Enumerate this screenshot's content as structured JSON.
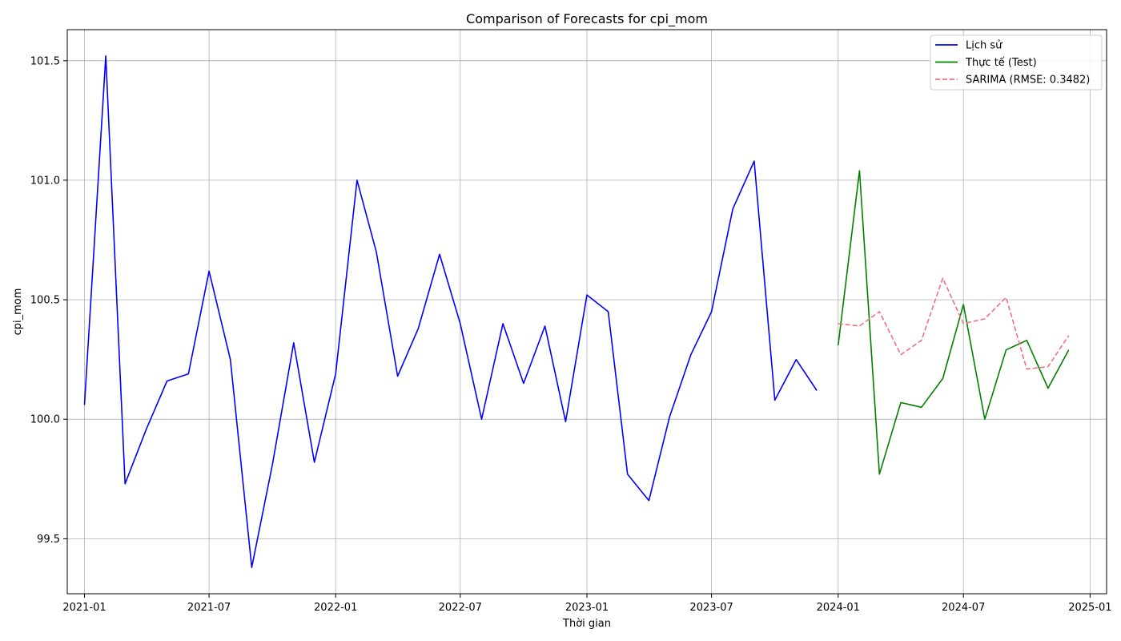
{
  "chart_data": {
    "type": "line",
    "title": "Comparison of Forecasts for cpi_mom",
    "xlabel": "Thời gian",
    "ylabel": "cpi_mom",
    "ylim": [
      99.27,
      101.63
    ],
    "xlim": [
      "2020-12-07",
      "2025-01-25"
    ],
    "x_ticks": [
      "2021-01",
      "2021-07",
      "2022-01",
      "2022-07",
      "2023-01",
      "2023-07",
      "2024-01",
      "2024-07",
      "2025-01"
    ],
    "y_ticks": [
      99.5,
      100.0,
      100.5,
      101.0,
      101.5
    ],
    "y_tick_labels": [
      "99.5",
      "100.0",
      "100.5",
      "101.0",
      "101.5"
    ],
    "grid": true,
    "legend_position": "top-right",
    "series": [
      {
        "name": "Lịch sử",
        "color": "#0000ff",
        "style": "solid",
        "x": [
          "2021-01",
          "2021-02",
          "2021-03",
          "2021-04",
          "2021-05",
          "2021-06",
          "2021-07",
          "2021-08",
          "2021-09",
          "2021-10",
          "2021-11",
          "2021-12",
          "2022-01",
          "2022-02",
          "2022-03",
          "2022-04",
          "2022-05",
          "2022-06",
          "2022-07",
          "2022-08",
          "2022-09",
          "2022-10",
          "2022-11",
          "2022-12",
          "2023-01",
          "2023-02",
          "2023-03",
          "2023-04",
          "2023-05",
          "2023-06",
          "2023-07",
          "2023-08",
          "2023-09",
          "2023-10",
          "2023-11",
          "2023-12"
        ],
        "values": [
          100.06,
          101.52,
          99.73,
          99.96,
          100.16,
          100.19,
          100.62,
          100.25,
          99.38,
          99.81,
          100.32,
          99.82,
          100.19,
          101.0,
          100.7,
          100.18,
          100.38,
          100.69,
          100.4,
          100.0,
          100.4,
          100.15,
          100.39,
          99.99,
          100.52,
          100.45,
          99.77,
          99.66,
          100.01,
          100.27,
          100.45,
          100.88,
          101.08,
          100.08,
          100.25,
          100.12
        ]
      },
      {
        "name": "Thực tế (Test)",
        "color": "#008000",
        "style": "solid",
        "x": [
          "2024-01",
          "2024-02",
          "2024-03",
          "2024-04",
          "2024-05",
          "2024-06",
          "2024-07",
          "2024-08",
          "2024-09",
          "2024-10",
          "2024-11",
          "2024-12"
        ],
        "values": [
          100.31,
          101.04,
          99.77,
          100.07,
          100.05,
          100.17,
          100.48,
          100.0,
          100.29,
          100.33,
          100.13,
          100.29
        ]
      },
      {
        "name": "SARIMA (RMSE: 0.3482)",
        "color": "#f07080",
        "style": "dashed",
        "x": [
          "2024-01",
          "2024-02",
          "2024-03",
          "2024-04",
          "2024-05",
          "2024-06",
          "2024-07",
          "2024-08",
          "2024-09",
          "2024-10",
          "2024-11",
          "2024-12"
        ],
        "values": [
          100.4,
          100.39,
          100.45,
          100.27,
          100.33,
          100.59,
          100.4,
          100.42,
          100.51,
          100.21,
          100.22,
          100.35
        ]
      }
    ]
  }
}
